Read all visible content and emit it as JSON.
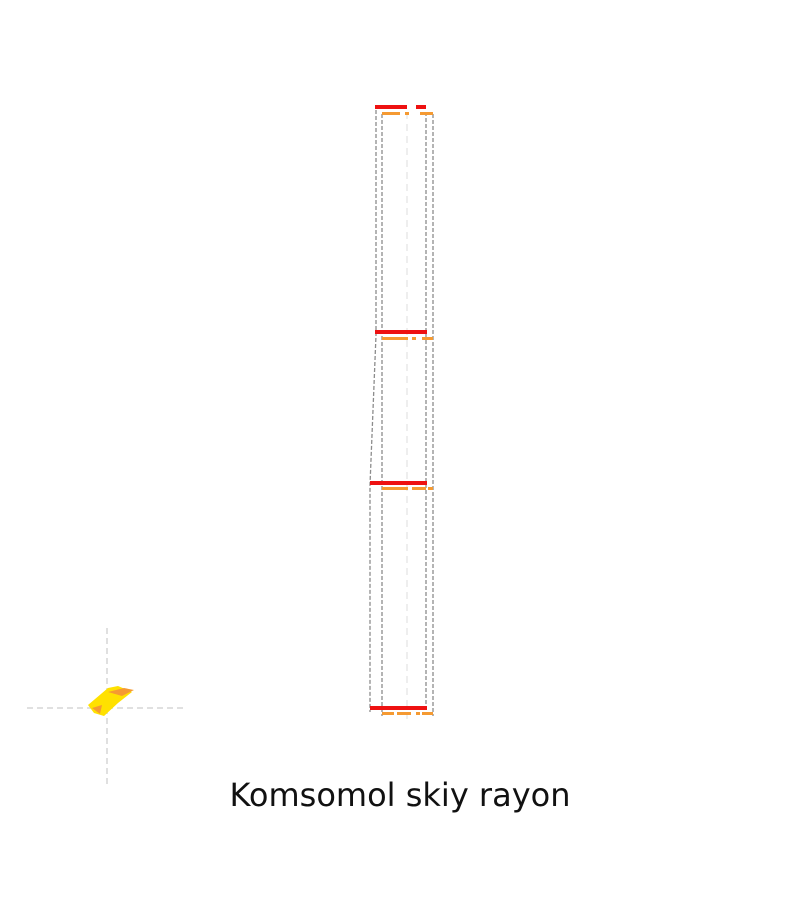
{
  "map": {
    "title": "Komsomol skiy rayon",
    "colors": {
      "outline": "#8c8c8c",
      "guide": "#d6d6d6",
      "hatch_primary": "#ee1111",
      "hatch_secondary": "#f59a32",
      "locator_fill": "#ffe100",
      "locator_accent": "#f59a32"
    }
  }
}
